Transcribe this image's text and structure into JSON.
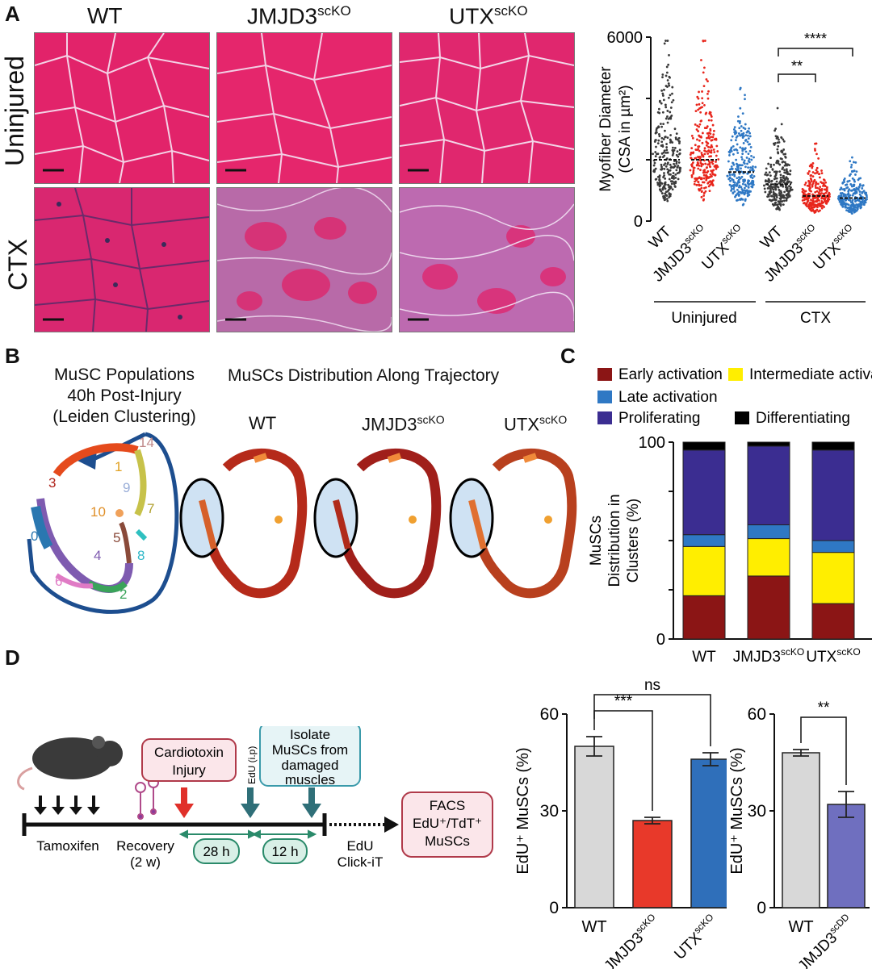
{
  "panels": {
    "a": "A",
    "b": "B",
    "c": "C",
    "d": "D"
  },
  "panel_a": {
    "col_headers": [
      "WT",
      "JMJD3",
      "UTX"
    ],
    "col_superscripts": [
      "",
      "scKO",
      "scKO"
    ],
    "row_labels": [
      "Uninjured",
      "CTX"
    ]
  },
  "panel_b": {
    "title_lines": [
      "MuSC Populations",
      "40h Post-Injury",
      "(Leiden Clustering)"
    ],
    "trajectory_title": "MuSCs Distribution Along Trajectory",
    "cluster_labels": [
      "14",
      "1",
      "3",
      "9",
      "7",
      "10",
      "5",
      "8",
      "0",
      "4",
      "6",
      "2"
    ],
    "umap_titles": [
      "WT",
      "JMJD3",
      "UTX"
    ],
    "umap_superscripts": [
      "",
      "scKO",
      "scKO"
    ]
  },
  "panel_d": {
    "labels": {
      "cardiotoxin": [
        "Cardiotoxin",
        "Injury"
      ],
      "isolate": [
        "Isolate",
        "MuSCs from",
        "damaged",
        "muscles"
      ],
      "edu_ip": "EdU (i.p)",
      "tamoxifen": "Tamoxifen",
      "recovery": [
        "Recovery",
        "(2 w)"
      ],
      "interval1": "28 h",
      "interval2": "12 h",
      "edu_click": [
        "EdU",
        "Click-iT"
      ],
      "facs": [
        "FACS",
        "EdU⁺/TdT⁺",
        "MuSCs"
      ]
    }
  },
  "chart_data": [
    {
      "id": "a-violin",
      "type": "scatter",
      "title": "",
      "ylabel_lines": [
        "Myofiber Diameter",
        "(CSA in µm²)"
      ],
      "ylim": [
        0,
        6000
      ],
      "yticks": [
        0,
        6000
      ],
      "categories": [
        "WT",
        "JMJD3",
        "UTX",
        "WT",
        "JMJD3",
        "UTX"
      ],
      "category_superscripts": [
        "",
        "scKO",
        "scKO",
        "",
        "scKO",
        "scKO"
      ],
      "groups": [
        "Uninjured",
        "CTX"
      ],
      "medians": [
        2000,
        2000,
        1600,
        1200,
        820,
        750
      ],
      "colors": [
        "#3a3a3a",
        "#e8261c",
        "#2f78c4",
        "#3a3a3a",
        "#e8261c",
        "#2f78c4"
      ],
      "significance": [
        "**",
        "****"
      ]
    },
    {
      "id": "c-stacked",
      "type": "bar",
      "ylabel_lines": [
        "MuSCs",
        "Distribution in",
        "Clusters (%)"
      ],
      "ylim": [
        0,
        100
      ],
      "yticks": [
        0,
        100
      ],
      "categories": [
        "WT",
        "JMJD3",
        "UTX"
      ],
      "category_superscripts": [
        "",
        "scKO",
        "scKO"
      ],
      "series": [
        {
          "name": "Early activation",
          "color": "#8b1515",
          "values": [
            22,
            32,
            18
          ]
        },
        {
          "name": "Intermediate activation",
          "color": "#ffee00",
          "values": [
            25,
            19,
            26
          ]
        },
        {
          "name": "Late activation",
          "color": "#2f78c4",
          "values": [
            6,
            7,
            6
          ]
        },
        {
          "name": "Proliferating",
          "color": "#3b2d91",
          "values": [
            43,
            40,
            46
          ]
        },
        {
          "name": "Differentiating",
          "color": "#000000",
          "values": [
            4,
            2,
            4
          ]
        }
      ]
    },
    {
      "id": "d-bar1",
      "type": "bar",
      "ylabel": "EdU⁺ MuSCs (%)",
      "ylim": [
        0,
        60
      ],
      "yticks": [
        0,
        30,
        60
      ],
      "categories": [
        "WT",
        "JMJD3",
        "UTX"
      ],
      "category_superscripts": [
        "",
        "scKO",
        "scKO"
      ],
      "values": [
        50,
        27,
        46
      ],
      "errors": [
        3,
        1,
        2
      ],
      "colors": [
        "#d8d8d8",
        "#e8392a",
        "#2f6fba"
      ],
      "significance": [
        "ns",
        "***"
      ]
    },
    {
      "id": "d-bar2",
      "type": "bar",
      "ylabel": "EdU⁺ MuSCs (%)",
      "ylim": [
        0,
        60
      ],
      "yticks": [
        0,
        30,
        60
      ],
      "categories": [
        "WT",
        "JMJD3"
      ],
      "category_superscripts": [
        "",
        "scDD"
      ],
      "values": [
        48,
        32
      ],
      "errors": [
        1,
        4
      ],
      "colors": [
        "#d8d8d8",
        "#6f6fbf"
      ],
      "significance": [
        "**"
      ]
    }
  ]
}
